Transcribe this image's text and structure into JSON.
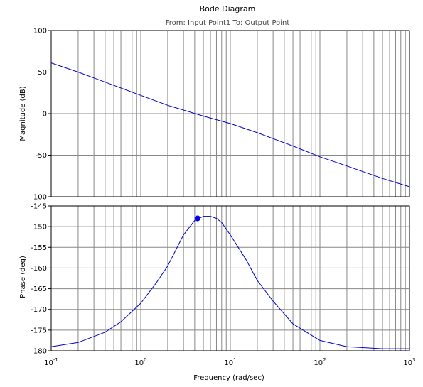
{
  "chart_data": [
    {
      "type": "line",
      "title": "Bode Diagram",
      "subtitle": "From: Input Point1  To: Output Point",
      "ylabel": "Magnitude (dB)",
      "xscale": "log",
      "xlim": [
        0.1,
        1000
      ],
      "ylim": [
        -100,
        100
      ],
      "yticks": [
        100,
        50,
        0,
        -50,
        -100
      ],
      "grid": true,
      "line_color": "#0000cc",
      "series": [
        {
          "x": [
            0.1,
            0.2,
            0.5,
            1,
            2,
            5,
            10,
            20,
            50,
            100,
            200,
            500,
            1000
          ],
          "values": [
            61,
            50,
            34,
            22,
            10,
            -3,
            -12,
            -23,
            -39,
            -52,
            -63,
            -78,
            -88
          ]
        }
      ]
    },
    {
      "type": "line",
      "xlabel": "Frequency  (rad/sec)",
      "ylabel": "Phase (deg)",
      "xscale": "log",
      "xlim": [
        0.1,
        1000
      ],
      "ylim": [
        -180,
        -145
      ],
      "yticks": [
        -145,
        -150,
        -155,
        -160,
        -165,
        -170,
        -175,
        -180
      ],
      "xticks": [
        {
          "base": "10",
          "exp": "-1"
        },
        {
          "base": "10",
          "exp": "0"
        },
        {
          "base": "10",
          "exp": "1"
        },
        {
          "base": "10",
          "exp": "2"
        },
        {
          "base": "10",
          "exp": "3"
        }
      ],
      "grid": true,
      "line_color": "#0000cc",
      "series": [
        {
          "x": [
            0.1,
            0.2,
            0.4,
            0.6,
            1,
            1.5,
            2,
            3,
            4,
            5,
            6,
            7,
            8,
            10,
            15,
            20,
            30,
            50,
            100,
            200,
            500,
            1000
          ],
          "values": [
            -179,
            -178,
            -175.5,
            -173,
            -168.5,
            -163.5,
            -159.5,
            -152,
            -148.5,
            -147.5,
            -147.5,
            -148,
            -149,
            -152,
            -158,
            -163,
            -168,
            -173.5,
            -177.5,
            -179,
            -179.5,
            -179.5
          ]
        }
      ],
      "marker": {
        "x": 4.3,
        "y": -148,
        "color": "#0000ee"
      }
    }
  ]
}
